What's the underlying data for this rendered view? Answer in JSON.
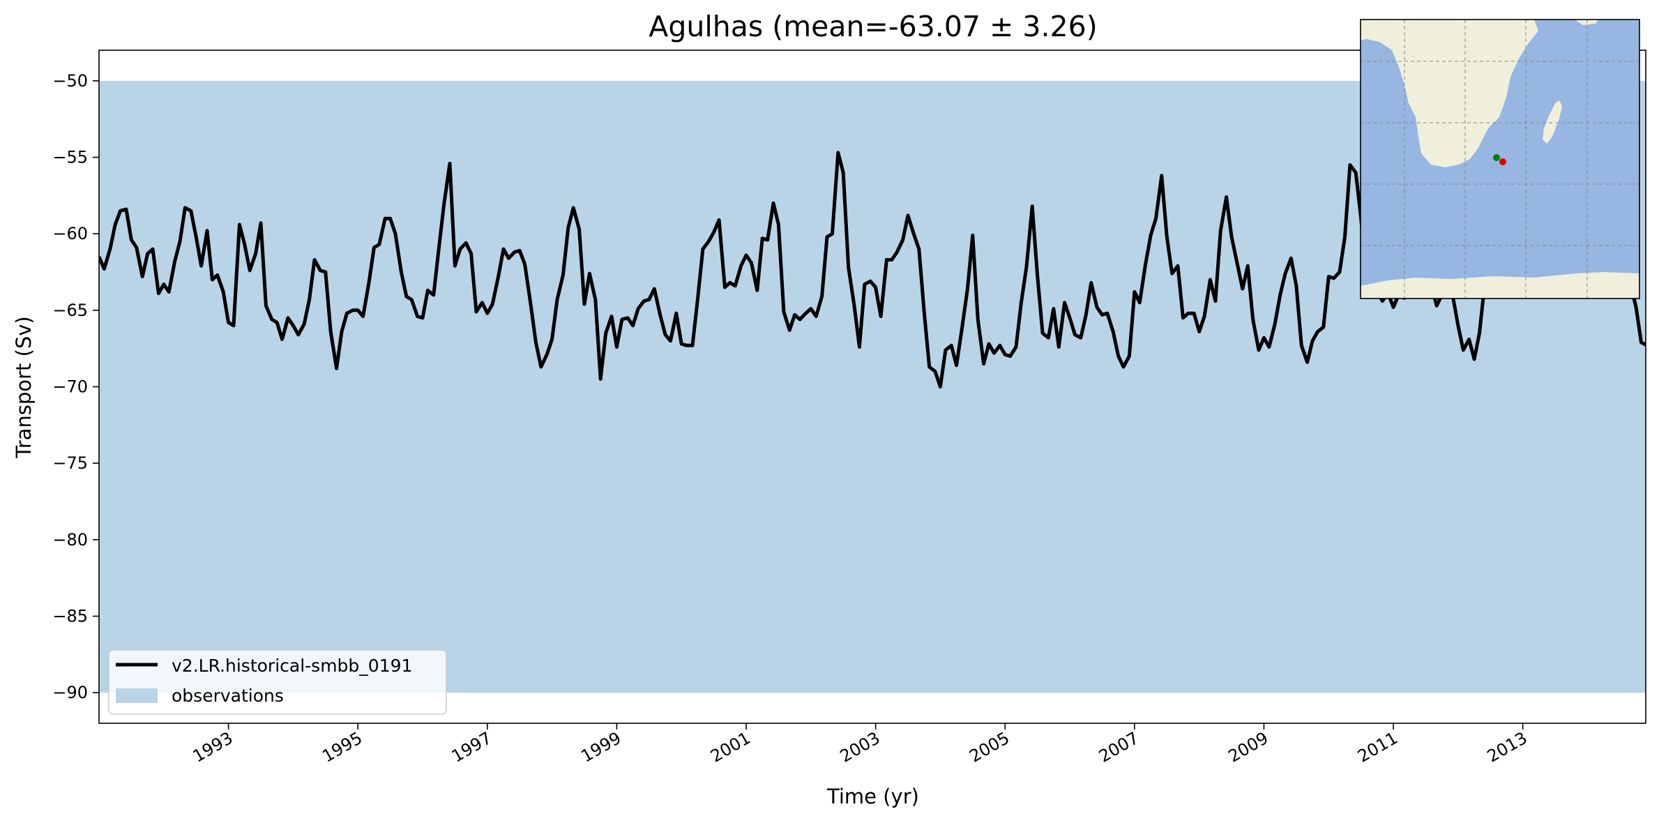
{
  "chart_data": {
    "type": "line",
    "title": "Agulhas (mean=-63.07 ± 3.26)",
    "xlabel": "Time (yr)",
    "ylabel": "Transport (Sv)",
    "xlim": [
      1991.0,
      2014.9
    ],
    "ylim": [
      -92,
      -48
    ],
    "x_ticks": [
      1993,
      1995,
      1997,
      1999,
      2001,
      2003,
      2005,
      2007,
      2009,
      2011,
      2013
    ],
    "x_tick_labels": [
      "1993",
      "1995",
      "1997",
      "1999",
      "2001",
      "2003",
      "2005",
      "2007",
      "2009",
      "2011",
      "2013"
    ],
    "y_ticks": [
      -50,
      -55,
      -60,
      -65,
      -70,
      -75,
      -80,
      -85,
      -90
    ],
    "y_tick_labels": [
      "−50",
      "−55",
      "−60",
      "−65",
      "−70",
      "−75",
      "−80",
      "−85",
      "−90"
    ],
    "observations_band": {
      "name": "observations",
      "y_min": -90,
      "y_max": -50,
      "color": "#bad4e7"
    },
    "series": [
      {
        "name": "v2.LR.historical-smbb_0191",
        "color": "#000000",
        "x": [
          1991.0,
          1991.08,
          1991.17,
          1991.25,
          1991.33,
          1991.42,
          1991.5,
          1991.58,
          1991.67,
          1991.75,
          1991.83,
          1991.92,
          1992.0,
          1992.08,
          1992.17,
          1992.25,
          1992.33,
          1992.42,
          1992.5,
          1992.58,
          1992.67,
          1992.75,
          1992.83,
          1992.92,
          1993.0,
          1993.08,
          1993.17,
          1993.25,
          1993.33,
          1993.42,
          1993.5,
          1993.58,
          1993.67,
          1993.75,
          1993.83,
          1993.92,
          1994.0,
          1994.08,
          1994.17,
          1994.25,
          1994.33,
          1994.42,
          1994.5,
          1994.58,
          1994.67,
          1994.75,
          1994.83,
          1994.92,
          1995.0,
          1995.08,
          1995.17,
          1995.25,
          1995.33,
          1995.42,
          1995.5,
          1995.58,
          1995.67,
          1995.75,
          1995.83,
          1995.92,
          1996.0,
          1996.08,
          1996.17,
          1996.25,
          1996.33,
          1996.42,
          1996.5,
          1996.58,
          1996.67,
          1996.75,
          1996.83,
          1996.92,
          1997.0,
          1997.08,
          1997.17,
          1997.25,
          1997.33,
          1997.42,
          1997.5,
          1997.58,
          1997.67,
          1997.75,
          1997.83,
          1997.92,
          1998.0,
          1998.08,
          1998.17,
          1998.25,
          1998.33,
          1998.42,
          1998.5,
          1998.58,
          1998.67,
          1998.75,
          1998.83,
          1998.92,
          1999.0,
          1999.08,
          1999.17,
          1999.25,
          1999.33,
          1999.42,
          1999.5,
          1999.58,
          1999.67,
          1999.75,
          1999.83,
          1999.92,
          2000.0,
          2000.08,
          2000.17,
          2000.25,
          2000.33,
          2000.42,
          2000.5,
          2000.58,
          2000.67,
          2000.75,
          2000.83,
          2000.92,
          2001.0,
          2001.08,
          2001.17,
          2001.25,
          2001.33,
          2001.42,
          2001.5,
          2001.58,
          2001.67,
          2001.75,
          2001.83,
          2001.92,
          2002.0,
          2002.08,
          2002.17,
          2002.25,
          2002.33,
          2002.42,
          2002.5,
          2002.58,
          2002.67,
          2002.75,
          2002.83,
          2002.92,
          2003.0,
          2003.08,
          2003.17,
          2003.25,
          2003.33,
          2003.42,
          2003.5,
          2003.58,
          2003.67,
          2003.75,
          2003.83,
          2003.92,
          2004.0,
          2004.08,
          2004.17,
          2004.25,
          2004.33,
          2004.42,
          2004.5,
          2004.58,
          2004.67,
          2004.75,
          2004.83,
          2004.92,
          2005.0,
          2005.08,
          2005.17,
          2005.25,
          2005.33,
          2005.42,
          2005.5,
          2005.58,
          2005.67,
          2005.75,
          2005.83,
          2005.92,
          2006.0,
          2006.08,
          2006.17,
          2006.25,
          2006.33,
          2006.42,
          2006.5,
          2006.58,
          2006.67,
          2006.75,
          2006.83,
          2006.92,
          2007.0,
          2007.08,
          2007.17,
          2007.25,
          2007.33,
          2007.42,
          2007.5,
          2007.58,
          2007.67,
          2007.75,
          2007.83,
          2007.92,
          2008.0,
          2008.08,
          2008.17,
          2008.25,
          2008.33,
          2008.42,
          2008.5,
          2008.58,
          2008.67,
          2008.75,
          2008.83,
          2008.92,
          2009.0,
          2009.08,
          2009.17,
          2009.25,
          2009.33,
          2009.42,
          2009.5,
          2009.58,
          2009.67,
          2009.75,
          2009.83,
          2009.92,
          2010.0,
          2010.08,
          2010.17,
          2010.25,
          2010.33,
          2010.42,
          2010.5,
          2010.58,
          2010.67,
          2010.75,
          2010.83,
          2010.92,
          2011.0,
          2011.08,
          2011.17,
          2011.25,
          2011.33,
          2011.42,
          2011.5,
          2011.58,
          2011.67,
          2011.75,
          2011.83,
          2011.92,
          2012.0,
          2012.08,
          2012.17,
          2012.25,
          2012.33,
          2012.42,
          2012.5,
          2012.58,
          2012.67,
          2012.75,
          2012.83,
          2012.92,
          2013.0,
          2013.08,
          2013.17,
          2013.25,
          2013.33,
          2013.42,
          2013.5,
          2013.58,
          2013.67,
          2013.75,
          2013.83,
          2013.92,
          2014.0,
          2014.08,
          2014.17,
          2014.25,
          2014.33,
          2014.42,
          2014.5,
          2014.58,
          2014.67,
          2014.75,
          2014.83,
          2014.92
        ],
        "y": [
          -61.5,
          -62.3,
          -61.0,
          -59.4,
          -58.5,
          -58.4,
          -60.4,
          -60.9,
          -62.8,
          -61.3,
          -61.0,
          -63.9,
          -63.3,
          -63.8,
          -61.8,
          -60.5,
          -58.3,
          -58.5,
          -60.2,
          -62.1,
          -59.8,
          -63.0,
          -62.7,
          -63.8,
          -65.8,
          -66.0,
          -59.4,
          -60.7,
          -62.4,
          -61.3,
          -59.3,
          -64.7,
          -65.6,
          -65.8,
          -66.9,
          -65.5,
          -66.0,
          -66.6,
          -65.9,
          -64.3,
          -61.7,
          -62.4,
          -62.5,
          -66.4,
          -68.8,
          -66.4,
          -65.2,
          -65.0,
          -65.0,
          -65.4,
          -63.2,
          -60.9,
          -60.7,
          -59.0,
          -59.0,
          -60.0,
          -62.5,
          -64.1,
          -64.3,
          -65.4,
          -65.5,
          -63.7,
          -64.0,
          -61.0,
          -58.1,
          -55.4,
          -62.1,
          -61.0,
          -60.6,
          -61.3,
          -65.1,
          -64.5,
          -65.2,
          -64.6,
          -62.8,
          -61.0,
          -61.6,
          -61.2,
          -61.1,
          -62.0,
          -64.6,
          -67.1,
          -68.7,
          -67.9,
          -66.9,
          -64.3,
          -62.7,
          -59.6,
          -58.3,
          -59.7,
          -64.6,
          -62.6,
          -64.3,
          -69.5,
          -66.5,
          -65.4,
          -67.4,
          -65.6,
          -65.5,
          -66.0,
          -64.9,
          -64.4,
          -64.3,
          -63.6,
          -65.3,
          -66.6,
          -67.0,
          -65.2,
          -67.2,
          -67.3,
          -67.3,
          -64.3,
          -61.0,
          -60.5,
          -59.9,
          -59.1,
          -63.5,
          -63.2,
          -63.4,
          -62.1,
          -61.4,
          -61.9,
          -63.7,
          -60.3,
          -60.4,
          -58.0,
          -59.4,
          -65.1,
          -66.3,
          -65.3,
          -65.6,
          -65.2,
          -64.9,
          -65.4,
          -64.1,
          -60.2,
          -60.0,
          -54.7,
          -56.0,
          -62.2,
          -64.7,
          -67.4,
          -63.3,
          -63.1,
          -63.5,
          -65.4,
          -61.7,
          -61.7,
          -61.2,
          -60.4,
          -58.8,
          -59.9,
          -61.0,
          -65.1,
          -68.7,
          -69.0,
          -70.0,
          -67.6,
          -67.3,
          -68.6,
          -66.3,
          -63.6,
          -60.1,
          -65.6,
          -68.5,
          -67.2,
          -67.8,
          -67.3,
          -67.9,
          -68.0,
          -67.4,
          -64.5,
          -62.2,
          -58.2,
          -62.7,
          -66.5,
          -66.8,
          -64.9,
          -67.4,
          -64.5,
          -65.5,
          -66.6,
          -66.8,
          -65.3,
          -63.2,
          -64.8,
          -65.3,
          -65.2,
          -66.4,
          -68.0,
          -68.7,
          -68.0,
          -63.8,
          -64.5,
          -62.0,
          -60.1,
          -59.0,
          -56.2,
          -60.2,
          -62.6,
          -62.1,
          -65.5,
          -65.2,
          -65.2,
          -66.4,
          -65.4,
          -63.0,
          -64.4,
          -59.8,
          -57.6,
          -60.2,
          -61.8,
          -63.6,
          -62.1,
          -65.6,
          -67.6,
          -66.8,
          -67.4,
          -65.9,
          -64.0,
          -62.6,
          -61.6,
          -63.4,
          -67.3,
          -68.4,
          -67.0,
          -66.4,
          -66.1,
          -62.8,
          -62.9,
          -62.5,
          -60.2,
          -55.5,
          -56.0,
          -59.0,
          -63.0,
          -64.1,
          -63.7,
          -64.4,
          -63.9,
          -64.8,
          -64.0,
          -64.2,
          -63.0,
          -62.2,
          -61.8,
          -62.5,
          -63.3,
          -64.7,
          -64.0,
          -63.2,
          -64.1,
          -66.0,
          -67.6,
          -66.9,
          -68.2,
          -66.5,
          -63.0,
          -61.4,
          -62.1,
          -62.8,
          -63.4,
          -62.5,
          -61.9,
          -62.4,
          -63.0,
          -62.3,
          -61.4,
          -60.5,
          -61.1,
          -62.4,
          -63.0,
          -62.6,
          -62.1,
          -61.7,
          -62.3,
          -62.7,
          -63.1,
          -62.4,
          -61.8,
          -61.0,
          -60.6,
          -61.5,
          -62.2,
          -63.4,
          -64.8,
          -67.1,
          -67.3
        ]
      }
    ],
    "legend": {
      "position": "lower-left",
      "entries": [
        {
          "label": "v2.LR.historical-smbb_0191",
          "kind": "line",
          "color": "#000000"
        },
        {
          "label": "observations",
          "kind": "patch",
          "color": "#bad4e7"
        }
      ]
    },
    "grid": false,
    "inset_map": {
      "position": "top-right",
      "region": "Southern Africa and South-West Indian Ocean",
      "ocean_color": "#97b6e1",
      "land_color": "#efefdb",
      "markers": [
        {
          "color": "#008000"
        },
        {
          "color": "#e00000"
        }
      ]
    }
  }
}
